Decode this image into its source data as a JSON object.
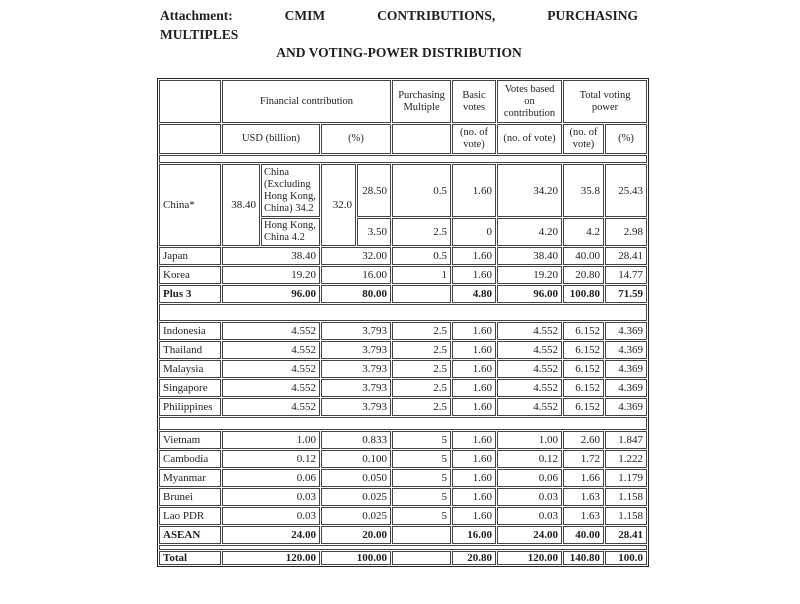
{
  "colors": {
    "text": "#1f1f1f",
    "border": "#444444",
    "outer_border": "#222222",
    "background": "#ffffff"
  },
  "title": {
    "line1_words": [
      "Attachment:",
      "CMIM",
      "CONTRIBUTIONS,",
      "PURCHASING"
    ],
    "line2": "MULTIPLES",
    "line3": "AND VOTING-POWER DISTRIBUTION"
  },
  "table": {
    "caption": "CMIM contributions, purchasing multiples and voting-power distribution",
    "rows": [
      {
        "name": "header-row-1",
        "cls": "r-head1 hdr",
        "cells": [
          {
            "t": "",
            "n": "corner-cell"
          },
          {
            "t": "Financial contribution",
            "cs": 4,
            "n": "header-financial-contribution"
          },
          {
            "t": "Purchasing Multiple",
            "n": "header-purchasing-multiple"
          },
          {
            "t": "Basic votes",
            "n": "header-basic-votes"
          },
          {
            "t": "Votes based on contribution",
            "n": "header-votes-based-on-contribution"
          },
          {
            "t": "Total voting power",
            "cs": 2,
            "n": "header-total-voting-power"
          }
        ]
      },
      {
        "name": "header-row-2",
        "cls": "r-head2 hdr",
        "cells": [
          {
            "t": "",
            "n": "corner-cell"
          },
          {
            "t": "USD (billion)",
            "cs": 2,
            "n": "header-usd-billion"
          },
          {
            "t": "(%)",
            "cs": 2,
            "n": "header-percent"
          },
          {
            "t": "",
            "n": "header-purchasing-empty"
          },
          {
            "t": "(no. of vote)",
            "n": "header-no-of-vote"
          },
          {
            "t": "(no. of vote)",
            "n": "header-no-of-vote"
          },
          {
            "t": "(no. of vote)",
            "n": "header-no-of-vote"
          },
          {
            "t": "(%)",
            "n": "header-percent"
          }
        ]
      },
      {
        "name": "spacer-row",
        "cls": "r-thin",
        "cells": [
          {
            "t": "",
            "cs": 10,
            "n": "spacer-cell"
          }
        ]
      },
      {
        "name": "row-china-main",
        "cls": "r-chA",
        "cells": [
          {
            "t": "China*",
            "rs": 2,
            "cls": "lft",
            "n": "row-label-china"
          },
          {
            "t": "38.40",
            "rs": 2,
            "n": "usd-value"
          },
          {
            "t": "China (Excluding Hong Kong, China) 34.2",
            "cls": "sub",
            "n": "china-excluding-hk-label"
          },
          {
            "t": "32.0",
            "rs": 2,
            "n": "pct-value"
          },
          {
            "t": "28.50",
            "n": "pct-sub-value"
          },
          {
            "t": "0.5",
            "n": "purchasing-multiple"
          },
          {
            "t": "1.60",
            "n": "basic-votes"
          },
          {
            "t": "34.20",
            "n": "votes-contribution"
          },
          {
            "t": "35.8",
            "n": "tvp-votes"
          },
          {
            "t": "25.43",
            "n": "tvp-percent"
          }
        ]
      },
      {
        "name": "row-china-hongkong",
        "cls": "r-chB",
        "cells": [
          {
            "t": "Hong Kong, China 4.2",
            "cls": "sub",
            "n": "hong-kong-label"
          },
          {
            "t": "3.50",
            "n": "pct-sub-value"
          },
          {
            "t": "2.5",
            "n": "purchasing-multiple"
          },
          {
            "t": "0",
            "n": "basic-votes"
          },
          {
            "t": "4.20",
            "n": "votes-contribution"
          },
          {
            "t": "4.2",
            "n": "tvp-votes"
          },
          {
            "t": "2.98",
            "n": "tvp-percent"
          }
        ]
      },
      {
        "name": "row-japan",
        "cls": "r-data",
        "cells": [
          {
            "t": "Japan",
            "cls": "lft",
            "n": "row-label"
          },
          {
            "t": "38.40",
            "cs": 2
          },
          {
            "t": "32.00",
            "cs": 2
          },
          {
            "t": "0.5"
          },
          {
            "t": "1.60"
          },
          {
            "t": "38.40"
          },
          {
            "t": "40.00"
          },
          {
            "t": "28.41"
          }
        ]
      },
      {
        "name": "row-korea",
        "cls": "r-data",
        "cells": [
          {
            "t": "Korea",
            "cls": "lft",
            "n": "row-label"
          },
          {
            "t": "19.20",
            "cs": 2
          },
          {
            "t": "16.00",
            "cs": 2
          },
          {
            "t": "1"
          },
          {
            "t": "1.60"
          },
          {
            "t": "19.20"
          },
          {
            "t": "20.80"
          },
          {
            "t": "14.77"
          }
        ]
      },
      {
        "name": "row-plus3",
        "cls": "r-data bold",
        "cells": [
          {
            "t": "Plus 3",
            "cls": "lft",
            "n": "row-label"
          },
          {
            "t": "96.00",
            "cs": 2
          },
          {
            "t": "80.00",
            "cs": 2
          },
          {
            "t": ""
          },
          {
            "t": "4.80"
          },
          {
            "t": "96.00"
          },
          {
            "t": "100.80"
          },
          {
            "t": "71.59"
          }
        ]
      },
      {
        "name": "separator-row",
        "cls": "r-sep1",
        "cells": [
          {
            "t": "",
            "cs": 10,
            "n": "spacer-cell"
          }
        ]
      },
      {
        "name": "row-indonesia",
        "cls": "r-data",
        "cells": [
          {
            "t": "Indonesia",
            "cls": "lft",
            "n": "row-label"
          },
          {
            "t": "4.552",
            "cs": 2
          },
          {
            "t": "3.793",
            "cs": 2
          },
          {
            "t": "2.5"
          },
          {
            "t": "1.60"
          },
          {
            "t": "4.552"
          },
          {
            "t": "6.152"
          },
          {
            "t": "4.369"
          }
        ]
      },
      {
        "name": "row-thailand",
        "cls": "r-data",
        "cells": [
          {
            "t": "Thailand",
            "cls": "lft",
            "n": "row-label"
          },
          {
            "t": "4.552",
            "cs": 2
          },
          {
            "t": "3.793",
            "cs": 2
          },
          {
            "t": "2.5"
          },
          {
            "t": "1.60"
          },
          {
            "t": "4.552"
          },
          {
            "t": "6.152"
          },
          {
            "t": "4.369"
          }
        ]
      },
      {
        "name": "row-malaysia",
        "cls": "r-data",
        "cells": [
          {
            "t": "Malaysia",
            "cls": "lft",
            "n": "row-label"
          },
          {
            "t": "4.552",
            "cs": 2
          },
          {
            "t": "3.793",
            "cs": 2
          },
          {
            "t": "2.5"
          },
          {
            "t": "1.60"
          },
          {
            "t": "4.552"
          },
          {
            "t": "6.152"
          },
          {
            "t": "4.369"
          }
        ]
      },
      {
        "name": "row-singapore",
        "cls": "r-data",
        "cells": [
          {
            "t": "Singapore",
            "cls": "lft",
            "n": "row-label"
          },
          {
            "t": "4.552",
            "cs": 2
          },
          {
            "t": "3.793",
            "cs": 2
          },
          {
            "t": "2.5"
          },
          {
            "t": "1.60"
          },
          {
            "t": "4.552"
          },
          {
            "t": "6.152"
          },
          {
            "t": "4.369"
          }
        ]
      },
      {
        "name": "row-philippines",
        "cls": "r-data",
        "cells": [
          {
            "t": "Philippines",
            "cls": "lft",
            "n": "row-label"
          },
          {
            "t": "4.552",
            "cs": 2
          },
          {
            "t": "3.793",
            "cs": 2
          },
          {
            "t": "2.5"
          },
          {
            "t": "1.60"
          },
          {
            "t": "4.552"
          },
          {
            "t": "6.152"
          },
          {
            "t": "4.369"
          }
        ]
      },
      {
        "name": "separator-row",
        "cls": "r-sep2",
        "cells": [
          {
            "t": "",
            "cs": 10,
            "n": "spacer-cell"
          }
        ]
      },
      {
        "name": "row-vietnam",
        "cls": "r-data",
        "cells": [
          {
            "t": "Vietnam",
            "cls": "lft",
            "n": "row-label"
          },
          {
            "t": "1.00",
            "cs": 2
          },
          {
            "t": "0.833",
            "cs": 2
          },
          {
            "t": "5"
          },
          {
            "t": "1.60"
          },
          {
            "t": "1.00"
          },
          {
            "t": "2.60"
          },
          {
            "t": "1.847"
          }
        ]
      },
      {
        "name": "row-cambodia",
        "cls": "r-data",
        "cells": [
          {
            "t": "Cambodia",
            "cls": "lft",
            "n": "row-label"
          },
          {
            "t": "0.12",
            "cs": 2
          },
          {
            "t": "0.100",
            "cs": 2
          },
          {
            "t": "5"
          },
          {
            "t": "1.60"
          },
          {
            "t": "0.12"
          },
          {
            "t": "1.72"
          },
          {
            "t": "1.222"
          }
        ]
      },
      {
        "name": "row-myanmar",
        "cls": "r-data",
        "cells": [
          {
            "t": "Myanmar",
            "cls": "lft",
            "n": "row-label"
          },
          {
            "t": "0.06",
            "cs": 2
          },
          {
            "t": "0.050",
            "cs": 2
          },
          {
            "t": "5"
          },
          {
            "t": "1.60"
          },
          {
            "t": "0.06"
          },
          {
            "t": "1.66"
          },
          {
            "t": "1.179"
          }
        ]
      },
      {
        "name": "row-brunei",
        "cls": "r-data",
        "cells": [
          {
            "t": "Brunei",
            "cls": "lft",
            "n": "row-label"
          },
          {
            "t": "0.03",
            "cs": 2
          },
          {
            "t": "0.025",
            "cs": 2
          },
          {
            "t": "5"
          },
          {
            "t": "1.60"
          },
          {
            "t": "0.03"
          },
          {
            "t": "1.63"
          },
          {
            "t": "1.158"
          }
        ]
      },
      {
        "name": "row-laopdr",
        "cls": "r-data",
        "cells": [
          {
            "t": "Lao PDR",
            "cls": "lft",
            "n": "row-label"
          },
          {
            "t": "0.03",
            "cs": 2
          },
          {
            "t": "0.025",
            "cs": 2
          },
          {
            "t": "5"
          },
          {
            "t": "1.60"
          },
          {
            "t": "0.03"
          },
          {
            "t": "1.63"
          },
          {
            "t": "1.158"
          }
        ]
      },
      {
        "name": "row-asean",
        "cls": "r-data bold",
        "cells": [
          {
            "t": "ASEAN",
            "cls": "lft",
            "n": "row-label"
          },
          {
            "t": "24.00",
            "cs": 2
          },
          {
            "t": "20.00",
            "cs": 2
          },
          {
            "t": ""
          },
          {
            "t": "16.00"
          },
          {
            "t": "24.00"
          },
          {
            "t": "40.00"
          },
          {
            "t": "28.41"
          }
        ]
      },
      {
        "name": "separator-row",
        "cls": "r-sep3",
        "cells": [
          {
            "t": "",
            "cs": 10,
            "n": "spacer-cell"
          }
        ]
      },
      {
        "name": "row-total",
        "cls": "r-total bold",
        "cells": [
          {
            "t": "Total",
            "cls": "lft",
            "n": "row-label"
          },
          {
            "t": "120.00",
            "cs": 2
          },
          {
            "t": "100.00",
            "cs": 2
          },
          {
            "t": ""
          },
          {
            "t": "20.80"
          },
          {
            "t": "120.00"
          },
          {
            "t": "140.80"
          },
          {
            "t": "100.0"
          }
        ]
      }
    ]
  }
}
